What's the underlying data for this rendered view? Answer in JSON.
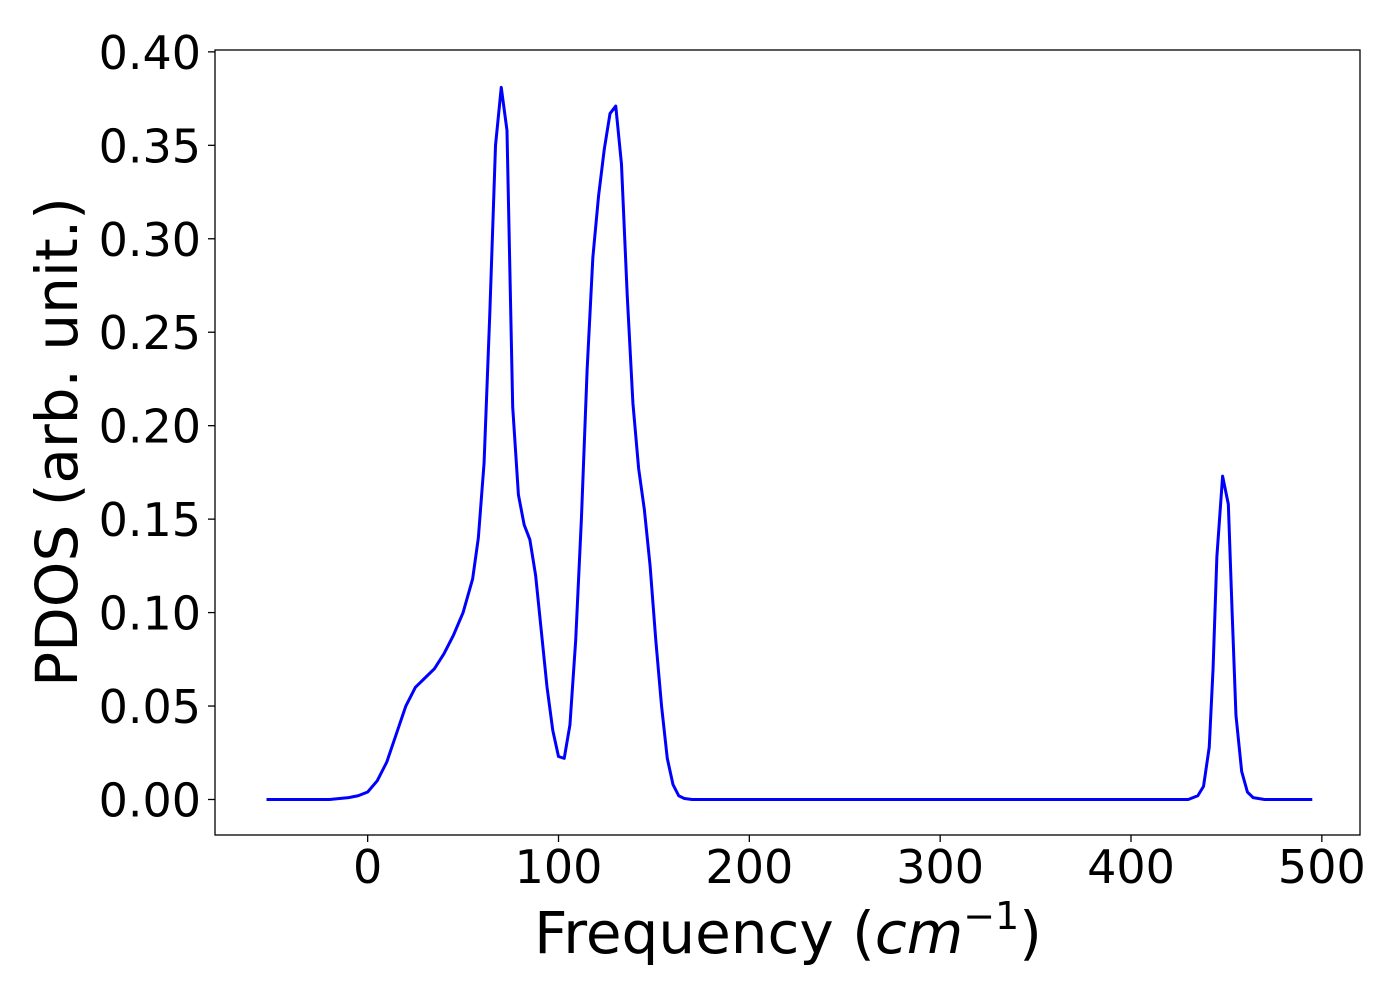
{
  "chart_data": {
    "type": "line",
    "title": "",
    "xlabel_main": "Frequency (",
    "xlabel_unit": "cm",
    "xlabel_exp": "−1",
    "xlabel_close": ")",
    "ylabel": "PDOS (arb. unit.)",
    "xlim": [
      -80,
      520
    ],
    "ylim": [
      -0.019,
      0.401
    ],
    "xticks": [
      0,
      100,
      200,
      300,
      400,
      500
    ],
    "xtick_labels": [
      "0",
      "100",
      "200",
      "300",
      "400",
      "500"
    ],
    "yticks": [
      0.0,
      0.05,
      0.1,
      0.15,
      0.2,
      0.25,
      0.3,
      0.35,
      0.4
    ],
    "ytick_labels": [
      "0.00",
      "0.05",
      "0.10",
      "0.15",
      "0.20",
      "0.25",
      "0.30",
      "0.35",
      "0.40"
    ],
    "grid": false,
    "series": [
      {
        "color": "#0000ff",
        "x": [
          -53,
          -20,
          -10,
          -5,
          0,
          5,
          10,
          15,
          20,
          25,
          30,
          35,
          40,
          45,
          50,
          55,
          58,
          61,
          64,
          67,
          70,
          73,
          76,
          79,
          82,
          85,
          88,
          91,
          94,
          97,
          100,
          103,
          106,
          109,
          112,
          115,
          118,
          121,
          124,
          127,
          130,
          133,
          136,
          139,
          142,
          145,
          148,
          151,
          154,
          157,
          160,
          163,
          166,
          170,
          200,
          300,
          400,
          430,
          435,
          438,
          441,
          443,
          445,
          448,
          451,
          453,
          455,
          458,
          461,
          464,
          470,
          495
        ],
        "y": [
          0.0,
          0.0,
          0.001,
          0.002,
          0.004,
          0.01,
          0.02,
          0.035,
          0.05,
          0.06,
          0.065,
          0.07,
          0.078,
          0.088,
          0.1,
          0.118,
          0.14,
          0.18,
          0.26,
          0.35,
          0.381,
          0.358,
          0.21,
          0.163,
          0.147,
          0.139,
          0.12,
          0.09,
          0.06,
          0.037,
          0.023,
          0.022,
          0.04,
          0.085,
          0.15,
          0.23,
          0.29,
          0.323,
          0.348,
          0.367,
          0.371,
          0.34,
          0.27,
          0.212,
          0.177,
          0.155,
          0.125,
          0.085,
          0.05,
          0.022,
          0.008,
          0.002,
          0.0005,
          0.0,
          0.0,
          0.0,
          0.0,
          0.0,
          0.002,
          0.007,
          0.028,
          0.07,
          0.13,
          0.173,
          0.158,
          0.1,
          0.045,
          0.015,
          0.004,
          0.001,
          0.0,
          0.0
        ]
      }
    ]
  }
}
